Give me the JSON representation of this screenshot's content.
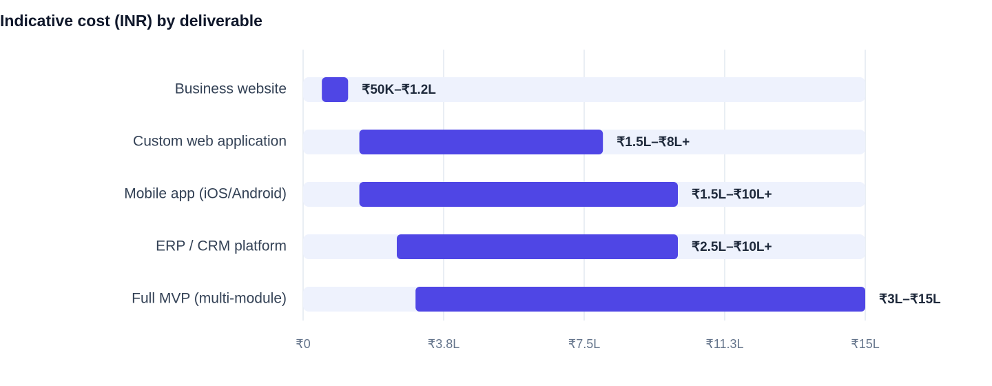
{
  "chart_data": {
    "type": "range-bar",
    "title": "Indicative cost (INR) by deliverable",
    "categories": [
      "Business website",
      "Custom web application",
      "Mobile app (iOS/Android)",
      "ERP / CRM platform",
      "Full MVP (multi-module)"
    ],
    "start": [
      0.5,
      1.5,
      1.5,
      2.5,
      3
    ],
    "end": [
      1.2,
      8,
      10,
      10,
      15
    ],
    "value_labels": [
      "₹50K–₹1.2L",
      "₹1.5L–₹8L+",
      "₹1.5L–₹10L+",
      "₹2.5L–₹10L+",
      "₹3L–₹15L"
    ],
    "color": "#4f46e5",
    "track_color": "#eef2fd",
    "xlim": [
      0,
      15
    ],
    "xticks": [
      {
        "value": 0,
        "label": "₹0"
      },
      {
        "value": 3.75,
        "label": "₹3.8L"
      },
      {
        "value": 7.5,
        "label": "₹7.5L"
      },
      {
        "value": 11.25,
        "label": "₹11.3L"
      },
      {
        "value": 15,
        "label": "₹15L"
      }
    ],
    "grid": true
  }
}
